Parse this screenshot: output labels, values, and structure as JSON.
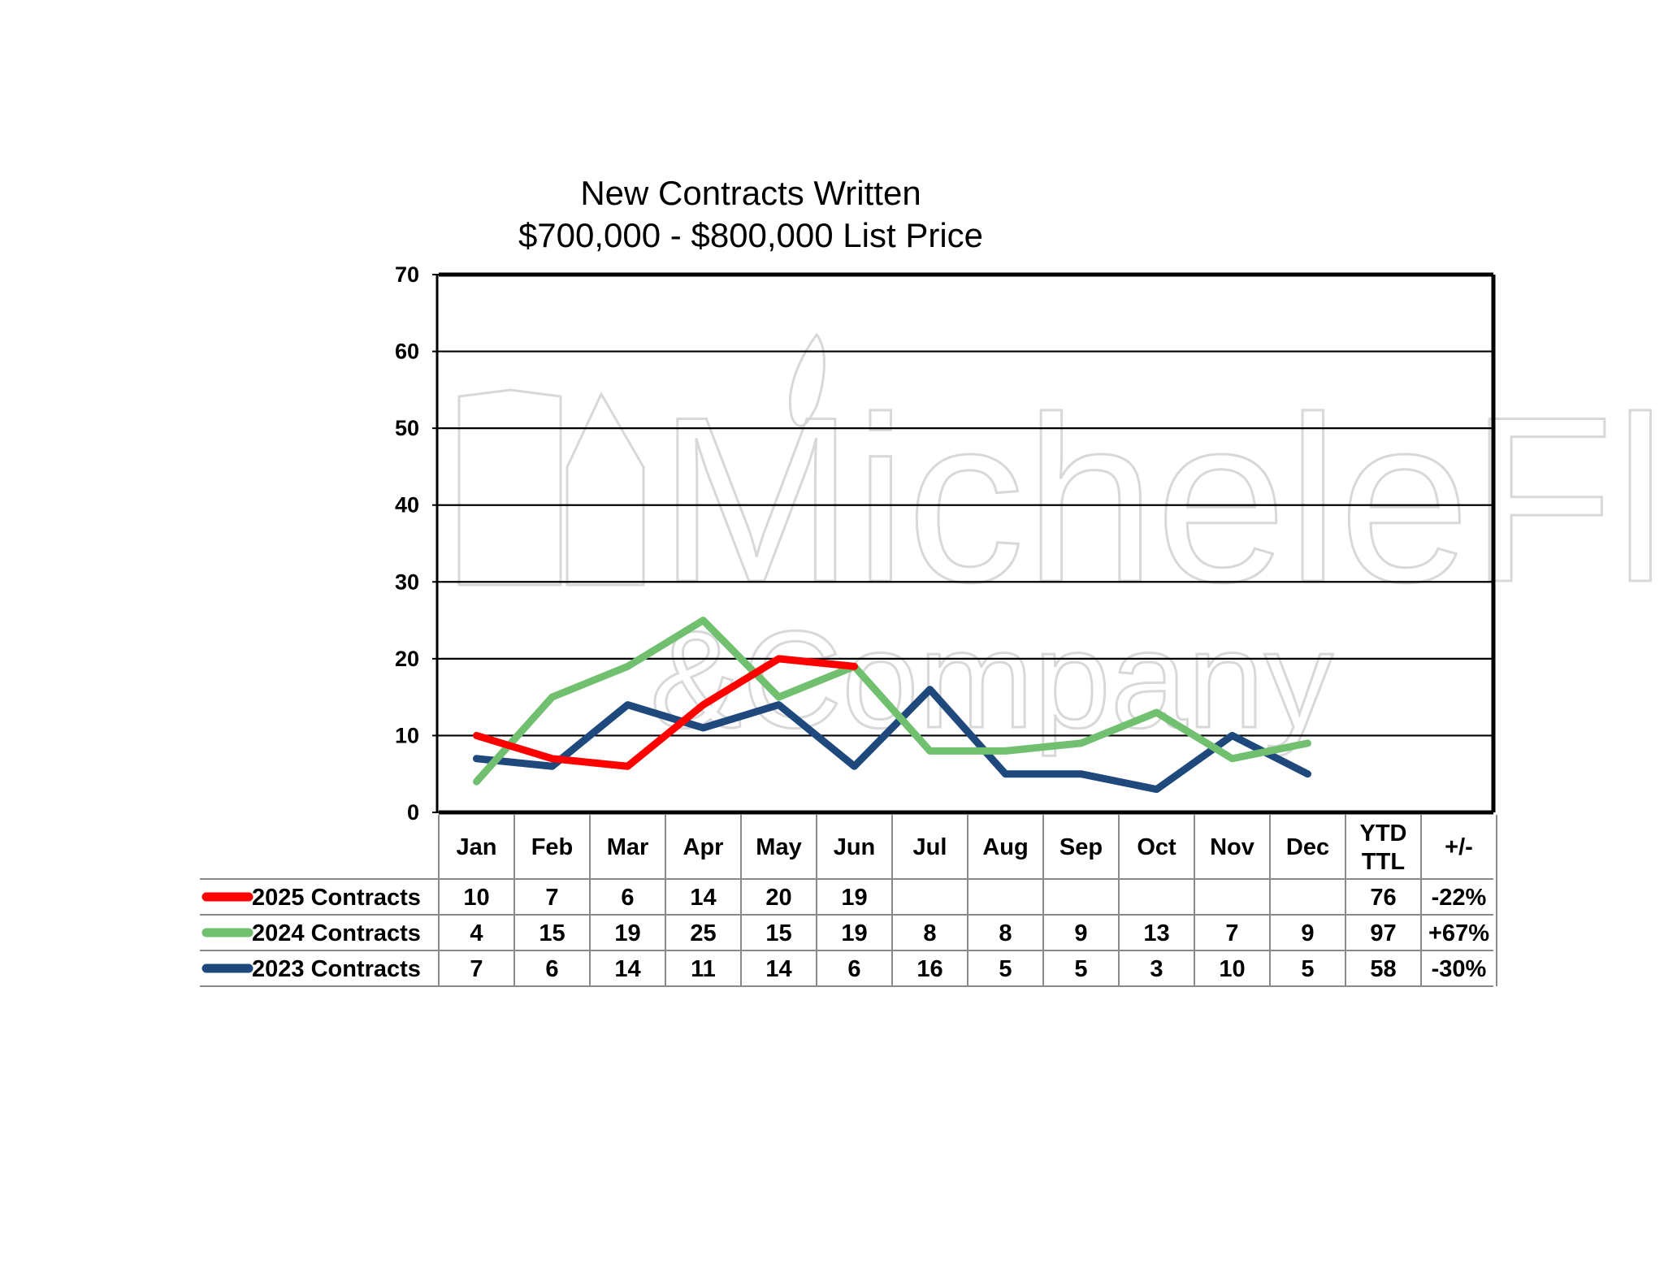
{
  "chart_data": {
    "type": "line",
    "title": "New Contracts Written",
    "subtitle": "$700,000 - $800,000 List Price",
    "ylim": [
      0,
      70
    ],
    "yticks": [
      0,
      10,
      20,
      30,
      40,
      50,
      60,
      70
    ],
    "grid": true,
    "categories": [
      "Jan",
      "Feb",
      "Mar",
      "Apr",
      "May",
      "Jun",
      "Jul",
      "Aug",
      "Sep",
      "Oct",
      "Nov",
      "Dec"
    ],
    "summary_headers": [
      "YTD TTL",
      "+/-"
    ],
    "series": [
      {
        "name": "2025 Contracts",
        "color": "#ff0000",
        "values": [
          10,
          7,
          6,
          14,
          20,
          19,
          null,
          null,
          null,
          null,
          null,
          null
        ],
        "ytd": "76",
        "change": "-22%"
      },
      {
        "name": "2024 Contracts",
        "color": "#70c070",
        "values": [
          4,
          15,
          19,
          25,
          15,
          19,
          8,
          8,
          9,
          13,
          7,
          9
        ],
        "ytd": "97",
        "change": "+67%"
      },
      {
        "name": "2023 Contracts",
        "color": "#1f497d",
        "values": [
          7,
          6,
          14,
          11,
          14,
          6,
          16,
          5,
          5,
          3,
          10,
          5
        ],
        "ytd": "58",
        "change": "-30%"
      }
    ],
    "watermark_text": [
      "MicheleFlory",
      "&Company"
    ]
  }
}
